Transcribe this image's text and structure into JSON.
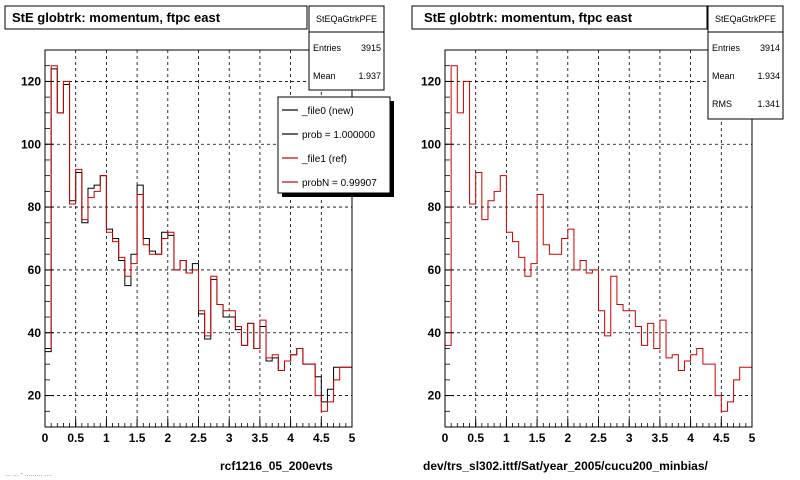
{
  "colors": {
    "background": "#ffffff",
    "frame": "#000000",
    "grid": "#000000",
    "file0_line": "#000000",
    "file1_line": "#cc0000"
  },
  "left_footer": "rcf1216_05_200evts",
  "right_footer": "dev/trs_sl302.ittf/Sat/year_2005/cucu200_minbias/",
  "timestamp_fragment": "... ... - ......... ....",
  "legend": {
    "entries": [
      {
        "label": "_file0 (new)"
      },
      {
        "label": "prob = 1.000000"
      },
      {
        "label": "_file1 (ref)"
      },
      {
        "label": "probN = 0.99907"
      }
    ]
  },
  "chart_data": [
    {
      "type": "line",
      "title": "StE globtrk: momentum, ftpc east",
      "stats": {
        "name": "StEQaGtrkPFE",
        "rows": [
          {
            "label": "Entries",
            "value": "3915"
          },
          {
            "label": "Mean",
            "value": "1.937"
          }
        ]
      },
      "xlim": [
        0,
        5
      ],
      "ylim": [
        10,
        130
      ],
      "grid": true,
      "legend_position": "top-right",
      "xticks": [
        "0",
        "0.5",
        "1",
        "1.5",
        "2",
        "2.5",
        "3",
        "3.5",
        "4",
        "4.5",
        "5"
      ],
      "yticks": [
        "20",
        "40",
        "60",
        "80",
        "100",
        "120"
      ],
      "bin_edges": [
        0,
        0.1,
        0.2,
        0.3,
        0.4,
        0.5,
        0.6,
        0.7,
        0.8,
        0.9,
        1.0,
        1.1,
        1.2,
        1.3,
        1.4,
        1.5,
        1.6,
        1.7,
        1.8,
        1.9,
        2.0,
        2.1,
        2.2,
        2.3,
        2.4,
        2.5,
        2.6,
        2.7,
        2.8,
        2.9,
        3.0,
        3.1,
        3.2,
        3.3,
        3.4,
        3.5,
        3.6,
        3.7,
        3.8,
        3.9,
        4.0,
        4.1,
        4.2,
        4.3,
        4.4,
        4.5,
        4.6,
        4.7,
        4.8,
        4.9,
        5.0
      ],
      "series": [
        {
          "values": [
            34,
            124,
            110,
            119,
            82,
            91,
            75,
            86,
            87,
            90,
            73,
            70,
            63,
            55,
            65,
            87,
            70,
            66,
            65,
            72,
            71,
            60,
            63,
            59,
            62,
            46,
            38,
            57,
            49,
            45,
            45,
            41,
            36,
            43,
            35,
            42,
            31,
            32,
            28,
            31,
            33,
            35,
            30,
            30,
            26,
            18,
            22,
            29,
            29,
            29
          ]
        },
        {
          "values": [
            35,
            125,
            110,
            120,
            81,
            92,
            76,
            83,
            85,
            90,
            72,
            69,
            64,
            58,
            62,
            84,
            68,
            65,
            65,
            70,
            72,
            60,
            63,
            59,
            60,
            47,
            39,
            58,
            49,
            47,
            47,
            42,
            36,
            43,
            35,
            44,
            32,
            33,
            28,
            31,
            33,
            35,
            30,
            30,
            20,
            15,
            18,
            25,
            29,
            29
          ]
        }
      ]
    },
    {
      "type": "line",
      "title": "StE globtrk: momentum, ftpc east",
      "stats": {
        "name": "StEQaGtrkPFE",
        "rows": [
          {
            "label": "Entries",
            "value": "3914"
          },
          {
            "label": "Mean",
            "value": "1.934"
          },
          {
            "label": "RMS",
            "value": "1.341"
          }
        ]
      },
      "xlim": [
        0,
        5
      ],
      "ylim": [
        10,
        130
      ],
      "grid": true,
      "xticks": [
        "0",
        "0.5",
        "1",
        "1.5",
        "2",
        "2.5",
        "3",
        "3.5",
        "4",
        "4.5",
        "5"
      ],
      "yticks": [
        "20",
        "40",
        "60",
        "80",
        "100",
        "120"
      ],
      "bin_edges": [
        0,
        0.1,
        0.2,
        0.3,
        0.4,
        0.5,
        0.6,
        0.7,
        0.8,
        0.9,
        1.0,
        1.1,
        1.2,
        1.3,
        1.4,
        1.5,
        1.6,
        1.7,
        1.8,
        1.9,
        2.0,
        2.1,
        2.2,
        2.3,
        2.4,
        2.5,
        2.6,
        2.7,
        2.8,
        2.9,
        3.0,
        3.1,
        3.2,
        3.3,
        3.4,
        3.5,
        3.6,
        3.7,
        3.8,
        3.9,
        4.0,
        4.1,
        4.2,
        4.3,
        4.4,
        4.5,
        4.6,
        4.7,
        4.8,
        4.9,
        5.0
      ],
      "series": [
        {
          "values": [
            36,
            125,
            110,
            120,
            81,
            91,
            76,
            82,
            85,
            90,
            72,
            69,
            64,
            58,
            62,
            84,
            68,
            65,
            65,
            70,
            73,
            60,
            63,
            59,
            60,
            47,
            39,
            58,
            49,
            47,
            47,
            42,
            36,
            43,
            35,
            44,
            32,
            33,
            28,
            31,
            33,
            35,
            30,
            30,
            20,
            15,
            18,
            25,
            29,
            29
          ]
        }
      ]
    }
  ]
}
